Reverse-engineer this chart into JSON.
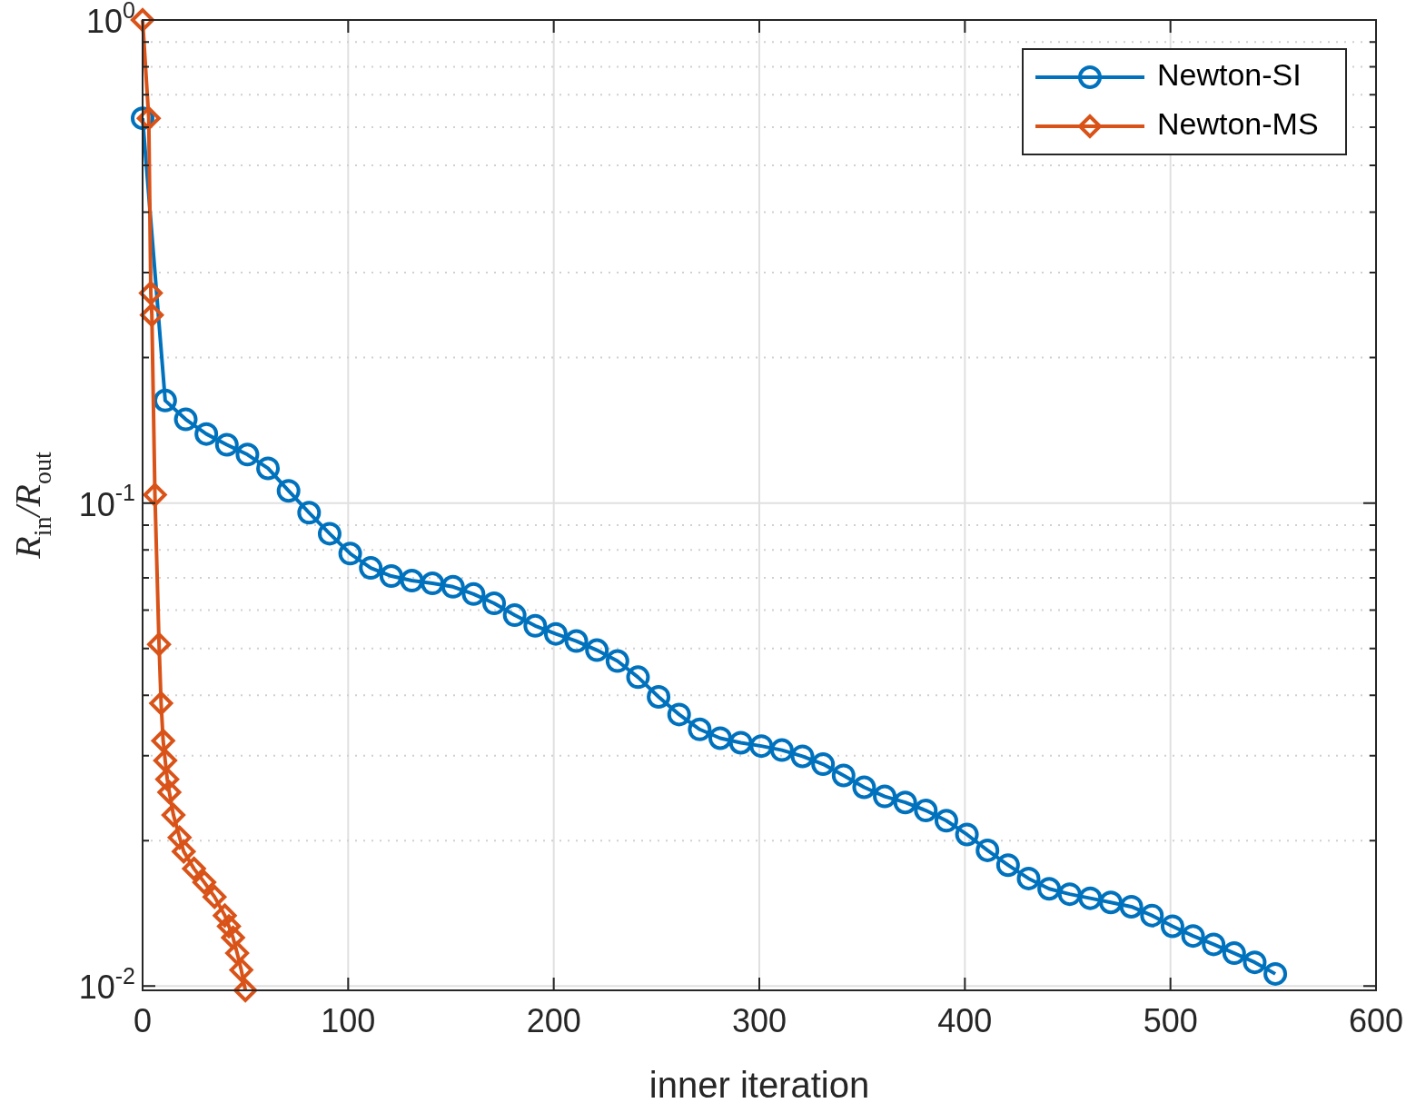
{
  "chart_data": {
    "type": "line",
    "xlabel": "inner iteration",
    "ylabel": "R$_{in}$/R$_{out}$",
    "log": "y",
    "grid": true,
    "legend": "top right",
    "xlim": [
      0,
      600
    ],
    "xticks": [
      0,
      100,
      200,
      300,
      400,
      500,
      600
    ],
    "ylim": [
      0.0098,
      1
    ],
    "yticks": [
      {
        "value": 0.01,
        "label": "10$^{-2}$"
      },
      {
        "value": 0.02,
        "label": null
      },
      {
        "value": 0.03,
        "label": null
      },
      {
        "value": 0.04,
        "label": null
      },
      {
        "value": 0.05,
        "label": null
      },
      {
        "value": 0.06,
        "label": null
      },
      {
        "value": 0.07,
        "label": null
      },
      {
        "value": 0.08,
        "label": null
      },
      {
        "value": 0.09,
        "label": null
      },
      {
        "value": 0.1,
        "label": "10$^{-1}$"
      },
      {
        "value": 0.2,
        "label": null
      },
      {
        "value": 0.3,
        "label": null
      },
      {
        "value": 0.4,
        "label": null
      },
      {
        "value": 0.5,
        "label": null
      },
      {
        "value": 0.6,
        "label": null
      },
      {
        "value": 0.7,
        "label": null
      },
      {
        "value": 0.8,
        "label": null
      },
      {
        "value": 0.9,
        "label": null
      },
      {
        "value": 1,
        "label": "10$^{0}$"
      }
    ],
    "series": [
      {
        "name": "Newton-SI",
        "color": "#0072bd",
        "marker": "circle",
        "x": [
          0,
          11,
          21,
          31,
          41,
          51,
          61,
          71,
          81,
          91,
          101,
          111,
          121,
          131,
          141,
          151,
          161,
          171,
          181,
          191,
          201,
          211,
          221,
          231,
          241,
          251,
          261,
          271,
          281,
          291,
          301,
          311,
          321,
          331,
          341,
          351,
          361,
          371,
          381,
          391,
          401,
          411,
          421,
          431,
          441,
          451,
          461,
          471,
          481,
          491,
          501,
          511,
          521,
          531,
          541,
          551
        ],
        "values": [
          0.626,
          0.163,
          0.149,
          0.139,
          0.132,
          0.126,
          0.118,
          0.106,
          0.0955,
          0.0864,
          0.0786,
          0.0734,
          0.0706,
          0.0691,
          0.0682,
          0.0671,
          0.0648,
          0.062,
          0.0586,
          0.0557,
          0.0536,
          0.0518,
          0.0496,
          0.0471,
          0.0436,
          0.0397,
          0.0365,
          0.034,
          0.0326,
          0.0319,
          0.0314,
          0.0308,
          0.0299,
          0.0288,
          0.0273,
          0.0258,
          0.0247,
          0.024,
          0.0231,
          0.022,
          0.0206,
          0.0191,
          0.0178,
          0.0167,
          0.0159,
          0.0155,
          0.0152,
          0.0149,
          0.0146,
          0.014,
          0.0133,
          0.0127,
          0.0122,
          0.0117,
          0.0112,
          0.0106
        ]
      },
      {
        "name": "Newton-MS",
        "color": "#d95319",
        "marker": "diamond",
        "x": [
          0,
          3,
          4,
          4.5,
          6,
          8,
          9,
          10,
          11,
          12,
          13,
          15,
          18,
          20,
          25,
          30,
          35,
          40,
          42,
          44,
          46,
          48,
          50
        ],
        "values": [
          1,
          0.626,
          0.272,
          0.245,
          0.104,
          0.051,
          0.0385,
          0.0322,
          0.0293,
          0.0268,
          0.0252,
          0.0226,
          0.0203,
          0.019,
          0.0175,
          0.0164,
          0.0153,
          0.014,
          0.0133,
          0.0126,
          0.0117,
          0.0108,
          0.0098
        ]
      }
    ]
  }
}
